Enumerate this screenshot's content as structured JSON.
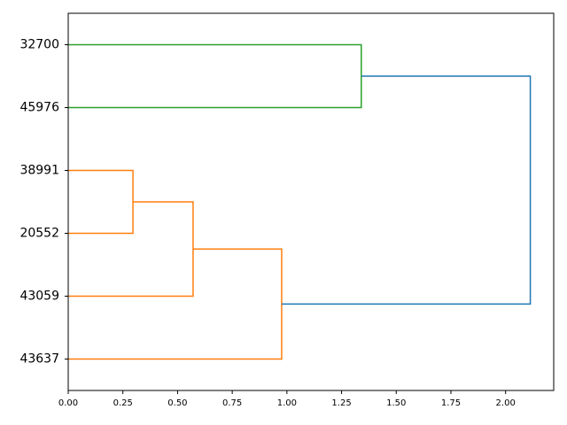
{
  "chart_data": {
    "type": "dendrogram",
    "orientation": "right",
    "xlim": [
      0,
      2.22
    ],
    "xticks": [
      {
        "value": 0,
        "label": "0.00"
      },
      {
        "value": 0.25,
        "label": "0.25"
      },
      {
        "value": 0.5,
        "label": "0.50"
      },
      {
        "value": 0.75,
        "label": "0.75"
      },
      {
        "value": 1,
        "label": "1.00"
      },
      {
        "value": 1.25,
        "label": "1.25"
      },
      {
        "value": 1.5,
        "label": "1.50"
      },
      {
        "value": 1.75,
        "label": "1.75"
      },
      {
        "value": 2,
        "label": "2.00"
      }
    ],
    "tree": {
      "height": 2.113,
      "color": "#1f77b4",
      "children": [
        {
          "height": 1.34,
          "color": "#2ca02c",
          "children": [
            {
              "label": "32700"
            },
            {
              "label": "45976"
            }
          ]
        },
        {
          "height": 0.976,
          "color": "#ff7f0e",
          "children": [
            {
              "height": 0.571,
              "color": "#ff7f0e",
              "children": [
                {
                  "height": 0.296,
                  "color": "#ff7f0e",
                  "children": [
                    {
                      "label": "38991"
                    },
                    {
                      "label": "20552"
                    }
                  ]
                },
                {
                  "label": "43059"
                }
              ]
            },
            {
              "label": "43637"
            }
          ]
        }
      ]
    }
  }
}
